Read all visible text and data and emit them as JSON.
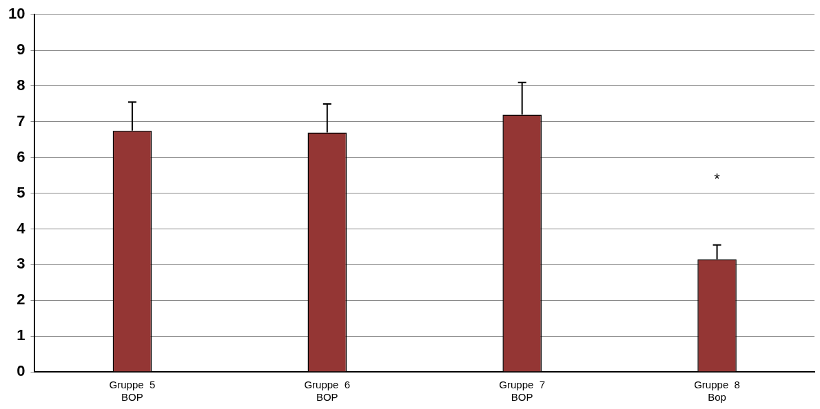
{
  "chart_data": {
    "type": "bar",
    "categories": [
      "Gruppe  5\nBOP",
      "Gruppe  6\nBOP",
      "Gruppe  7\nBOP",
      "Gruppe  8\nBop"
    ],
    "values": [
      6.75,
      6.7,
      7.2,
      3.15
    ],
    "errors": [
      [
        6.75,
        7.55
      ],
      [
        6.7,
        7.5
      ],
      [
        7.2,
        8.1
      ],
      [
        3.15,
        3.55
      ]
    ],
    "color": "#943634",
    "ylim": [
      0,
      10
    ],
    "yticks": [
      0,
      1,
      2,
      3,
      4,
      5,
      6,
      7,
      8,
      9,
      10
    ],
    "grid": "y",
    "annotations": [
      "*"
    ]
  }
}
